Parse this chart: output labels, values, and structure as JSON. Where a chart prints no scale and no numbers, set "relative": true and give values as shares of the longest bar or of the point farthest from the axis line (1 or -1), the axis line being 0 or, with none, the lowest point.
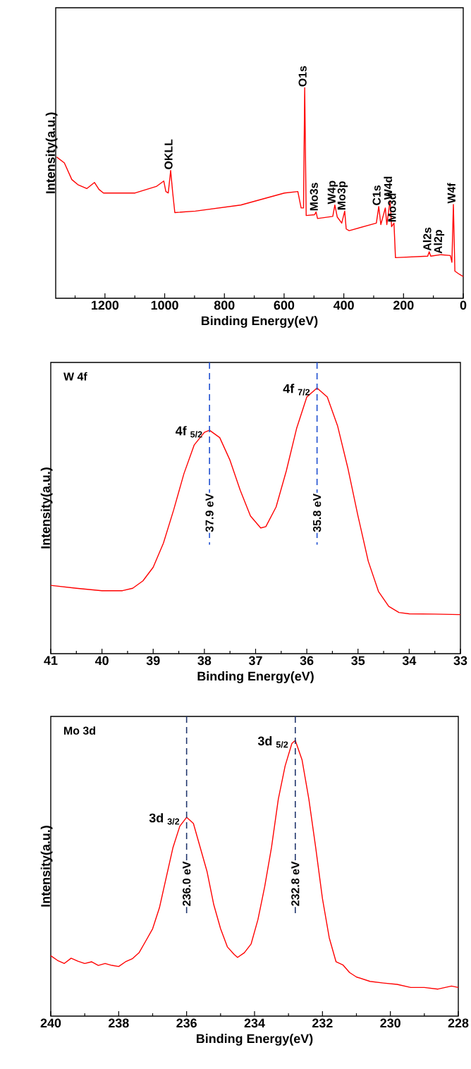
{
  "chart_data": [
    {
      "type": "line",
      "relative": true,
      "color": "#ff0000",
      "xlabel": "Binding Energy(eV)",
      "ylabel": "Intensity(a.u.)",
      "xlim": [
        1365,
        0
      ],
      "xticks": [
        {
          "value": 1300,
          "label": null
        },
        1200,
        {
          "value": 1100,
          "label": null
        },
        1000,
        {
          "value": 900,
          "label": null
        },
        800,
        {
          "value": 700,
          "label": null
        },
        600,
        {
          "value": 500,
          "label": null
        },
        400,
        {
          "value": 300,
          "label": null
        },
        200,
        {
          "value": 100,
          "label": null
        },
        0
      ],
      "x": [
        1362,
        1336,
        1311,
        1291,
        1261,
        1235,
        1220,
        1205,
        1099,
        1028,
        1003,
        996,
        988,
        980,
        973,
        966,
        897,
        745,
        599,
        554,
        543,
        535,
        531,
        526,
        498,
        493,
        488,
        437,
        430,
        422,
        407,
        397,
        392,
        382,
        291,
        283,
        276,
        261,
        256,
        245,
        240,
        232,
        227,
        119,
        114,
        109,
        74,
        43,
        38,
        33,
        28,
        13,
        0
      ],
      "values": [
        0.671,
        0.643,
        0.564,
        0.54,
        0.521,
        0.55,
        0.517,
        0.5,
        0.5,
        0.531,
        0.557,
        0.507,
        0.5,
        0.607,
        0.5,
        0.407,
        0.414,
        0.443,
        0.5,
        0.507,
        0.429,
        0.429,
        1.0,
        0.393,
        0.397,
        0.41,
        0.379,
        0.389,
        0.443,
        0.386,
        0.357,
        0.414,
        0.329,
        0.321,
        0.357,
        0.436,
        0.35,
        0.429,
        0.35,
        0.464,
        0.34,
        0.357,
        0.193,
        0.2,
        0.221,
        0.2,
        0.207,
        0.203,
        0.171,
        0.446,
        0.129,
        0.114,
        0.103
      ],
      "annotations": [
        {
          "text": "OKLL",
          "x": 980,
          "y": 0.607
        },
        {
          "text": "O1s",
          "x": 531,
          "y": 1.0
        },
        {
          "text": "Mo3s",
          "x": 493,
          "y": 0.41
        },
        {
          "text": "W4p",
          "x": 430,
          "y": 0.443
        },
        {
          "text": "Mo3p",
          "x": 397,
          "y": 0.414
        },
        {
          "text": "C1s",
          "x": 283,
          "y": 0.436
        },
        {
          "text": "W4d",
          "x": 245,
          "y": 0.464
        },
        {
          "text": "Mo3d",
          "x": 232,
          "y": 0.357
        },
        {
          "text": "Al2s",
          "x": 114,
          "y": 0.221
        },
        {
          "text": "Al2p",
          "x": 74,
          "y": 0.207
        },
        {
          "text": "W4f",
          "x": 33,
          "y": 0.446
        }
      ]
    },
    {
      "type": "line",
      "relative": true,
      "color": "#ff0000",
      "xlabel": "Binding Energy(eV)",
      "ylabel": "Intensity(a.u.)",
      "xlim": [
        41,
        33
      ],
      "xticks": [
        41,
        {
          "value": 40.5,
          "label": null
        },
        40,
        {
          "value": 39.5,
          "label": null
        },
        39,
        {
          "value": 38.5,
          "label": null
        },
        38,
        {
          "value": 37.5,
          "label": null
        },
        37,
        {
          "value": 36.5,
          "label": null
        },
        36,
        {
          "value": 35.5,
          "label": null
        },
        35,
        {
          "value": 34.5,
          "label": null
        },
        34,
        {
          "value": 33.5,
          "label": null
        },
        33
      ],
      "x": [
        41.0,
        40.5,
        40.0,
        39.6,
        39.4,
        39.2,
        39.0,
        38.8,
        38.6,
        38.4,
        38.2,
        38.0,
        37.9,
        37.7,
        37.5,
        37.3,
        37.1,
        36.9,
        36.8,
        36.6,
        36.4,
        36.2,
        36.0,
        35.8,
        35.6,
        35.4,
        35.2,
        35.0,
        34.8,
        34.6,
        34.4,
        34.2,
        34.0,
        33.5,
        33.0
      ],
      "values": [
        0.257,
        0.246,
        0.237,
        0.237,
        0.246,
        0.274,
        0.325,
        0.416,
        0.541,
        0.677,
        0.785,
        0.833,
        0.841,
        0.813,
        0.728,
        0.615,
        0.518,
        0.473,
        0.478,
        0.552,
        0.688,
        0.847,
        0.966,
        1.0,
        0.966,
        0.858,
        0.7,
        0.518,
        0.348,
        0.234,
        0.178,
        0.155,
        0.15,
        0.149,
        0.147
      ],
      "ref_lines": [
        {
          "axis": "x",
          "value": 37.9,
          "label": "37.9 eV",
          "color": "#1f4fd0",
          "line_style": "dashed"
        },
        {
          "axis": "x",
          "value": 35.8,
          "label": "35.8 eV",
          "color": "#1f4fd0",
          "line_style": "dashed"
        }
      ],
      "annotations": [
        "W 4f",
        {
          "text": "4f $_{5/2}$",
          "x": 37.9,
          "y": 0.841
        },
        {
          "text": "4f $_{7/2}$",
          "x": 35.8,
          "y": 1.0
        }
      ]
    },
    {
      "type": "line",
      "relative": true,
      "color": "#ff0000",
      "xlabel": "Binding Energy(eV)",
      "ylabel": "Intensity(a.u.)",
      "xlim": [
        240,
        228
      ],
      "xticks": [
        240,
        {
          "value": 239,
          "label": null
        },
        238,
        {
          "value": 237,
          "label": null
        },
        236,
        {
          "value": 235,
          "label": null
        },
        234,
        {
          "value": 233,
          "label": null
        },
        232,
        {
          "value": 231,
          "label": null
        },
        230,
        {
          "value": 229,
          "label": null
        },
        228
      ],
      "x": [
        240.0,
        239.8,
        239.6,
        239.4,
        239.2,
        239.0,
        238.8,
        238.6,
        238.4,
        238.2,
        238.0,
        237.8,
        237.6,
        237.4,
        237.2,
        237.0,
        236.8,
        236.6,
        236.4,
        236.2,
        236.0,
        235.8,
        235.6,
        235.4,
        235.2,
        235.0,
        234.8,
        234.6,
        234.5,
        234.3,
        234.1,
        233.9,
        233.7,
        233.5,
        233.3,
        233.1,
        232.9,
        232.8,
        232.6,
        232.4,
        232.2,
        232.0,
        231.8,
        231.6,
        231.4,
        231.2,
        231.0,
        230.6,
        230.2,
        229.8,
        229.4,
        229.0,
        228.6,
        228.2,
        228.0
      ],
      "values": [
        0.219,
        0.202,
        0.191,
        0.21,
        0.199,
        0.191,
        0.197,
        0.184,
        0.191,
        0.184,
        0.18,
        0.197,
        0.208,
        0.23,
        0.273,
        0.317,
        0.393,
        0.503,
        0.612,
        0.689,
        0.721,
        0.699,
        0.612,
        0.525,
        0.404,
        0.317,
        0.251,
        0.224,
        0.213,
        0.23,
        0.262,
        0.35,
        0.47,
        0.612,
        0.787,
        0.907,
        0.989,
        1.0,
        0.929,
        0.787,
        0.612,
        0.426,
        0.284,
        0.197,
        0.186,
        0.158,
        0.142,
        0.126,
        0.12,
        0.115,
        0.104,
        0.104,
        0.098,
        0.109,
        0.104
      ],
      "ref_lines": [
        {
          "axis": "x",
          "value": 236.0,
          "label": "236.0 eV",
          "color": "#22376e",
          "line_style": "dashed"
        },
        {
          "axis": "x",
          "value": 232.8,
          "label": "232.8 eV",
          "color": "#22376e",
          "line_style": "dashed"
        }
      ],
      "annotations": [
        "Mo 3d",
        {
          "text": "3d $_{3/2}$",
          "x": 236.0,
          "y": 0.721
        },
        {
          "text": "3d $_{5/2}$",
          "x": 232.8,
          "y": 1.0
        }
      ]
    }
  ]
}
